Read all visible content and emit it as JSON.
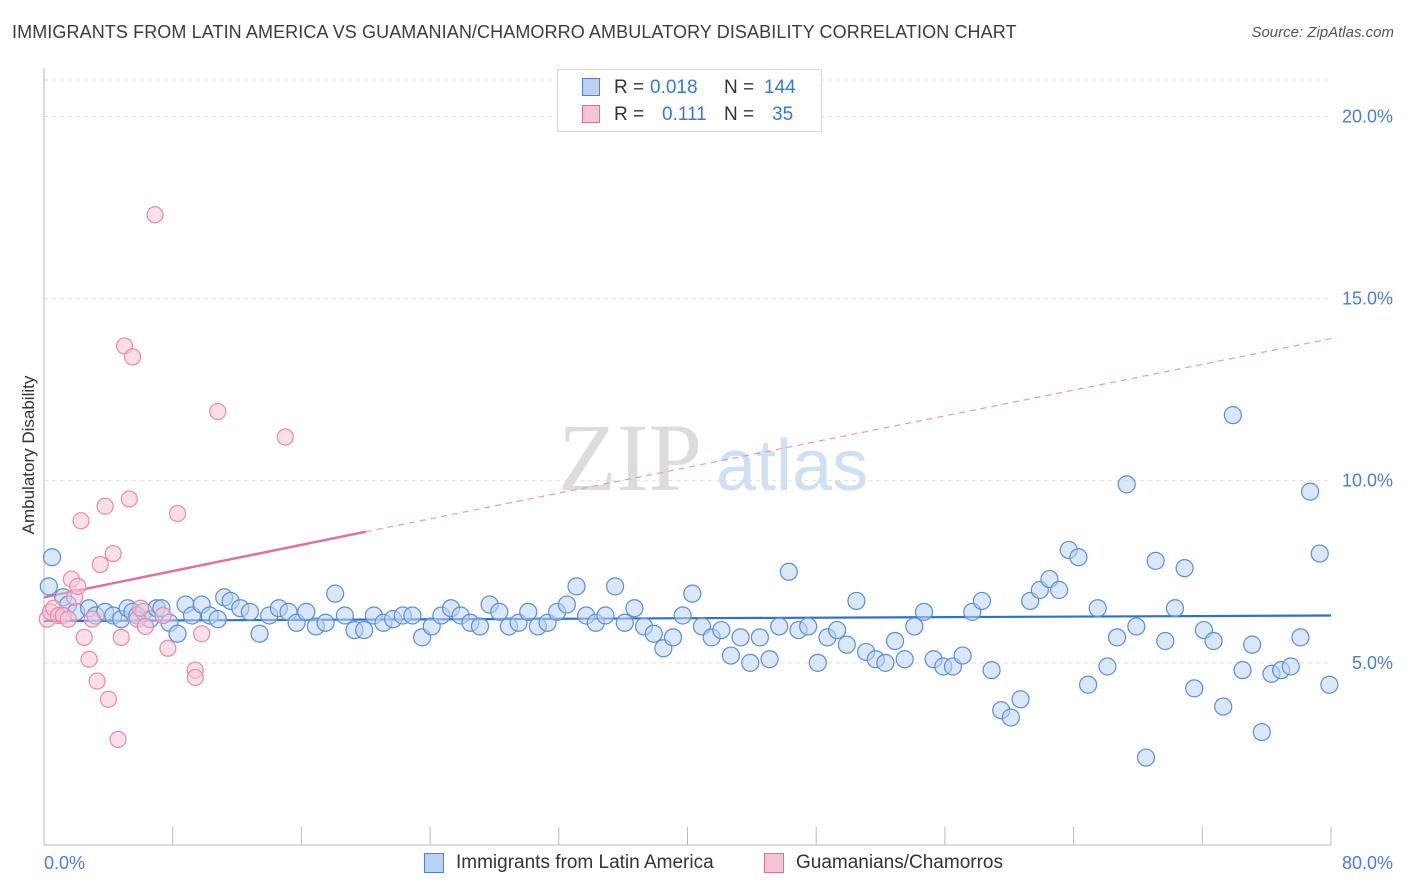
{
  "header": {
    "title": "IMMIGRANTS FROM LATIN AMERICA VS GUAMANIAN/CHAMORRO AMBULATORY DISABILITY CORRELATION CHART",
    "source": "Source: ZipAtlas.com"
  },
  "watermark": {
    "zip": "ZIP",
    "atlas": "atlas"
  },
  "legend": {
    "rows": [
      {
        "r_label": "R =",
        "r_value": "0.018",
        "n_label": "N =",
        "n_value": "144",
        "color": "#aac8f0"
      },
      {
        "r_label": "R =",
        "r_value": "0.111",
        "n_label": "N =",
        "n_value": "35",
        "color": "#f5bcd0"
      }
    ]
  },
  "bottom_legend": {
    "series1": "Immigrants from Latin America",
    "series2": "Guamanians/Chamorros"
  },
  "colors": {
    "blue": "#4a86d8",
    "blue_fill": "#b9d3f3",
    "pink": "#e0709a",
    "pink_fill": "#f7c4d5",
    "tick_text": "#4a7fd4",
    "grid": "#dddddd"
  },
  "chart_data": {
    "type": "scatter",
    "xlabel": "",
    "ylabel": "Ambulatory Disability",
    "xlim": [
      0,
      80
    ],
    "ylim": [
      0,
      21
    ],
    "x_tick_labels": [
      "0.0%",
      "80.0%"
    ],
    "y_ticks": [
      5,
      10,
      15,
      20
    ],
    "y_tick_labels": [
      "5.0%",
      "10.0%",
      "15.0%",
      "20.0%"
    ],
    "grid": true,
    "legend_position": "top-center",
    "series": [
      {
        "name": "Immigrants from Latin America",
        "color": "#4a86d8",
        "R": 0.018,
        "N": 144,
        "trend": {
          "x": [
            0,
            80
          ],
          "y": [
            6.15,
            6.3
          ]
        },
        "points": [
          [
            0.3,
            7.1
          ],
          [
            0.5,
            7.9
          ],
          [
            1.2,
            6.8
          ],
          [
            1.5,
            6.6
          ],
          [
            2.0,
            6.4
          ],
          [
            2.8,
            6.5
          ],
          [
            3.2,
            6.3
          ],
          [
            3.8,
            6.4
          ],
          [
            4.3,
            6.3
          ],
          [
            4.8,
            6.2
          ],
          [
            5.2,
            6.5
          ],
          [
            5.5,
            6.4
          ],
          [
            5.8,
            6.3
          ],
          [
            6.2,
            6.4
          ],
          [
            6.6,
            6.2
          ],
          [
            7.0,
            6.5
          ],
          [
            7.3,
            6.5
          ],
          [
            7.8,
            6.1
          ],
          [
            8.3,
            5.8
          ],
          [
            8.8,
            6.6
          ],
          [
            9.2,
            6.3
          ],
          [
            9.8,
            6.6
          ],
          [
            10.3,
            6.3
          ],
          [
            10.8,
            6.2
          ],
          [
            11.2,
            6.8
          ],
          [
            11.6,
            6.7
          ],
          [
            12.2,
            6.5
          ],
          [
            12.8,
            6.4
          ],
          [
            13.4,
            5.8
          ],
          [
            14.0,
            6.3
          ],
          [
            14.6,
            6.5
          ],
          [
            15.2,
            6.4
          ],
          [
            15.7,
            6.1
          ],
          [
            16.3,
            6.4
          ],
          [
            16.9,
            6.0
          ],
          [
            17.5,
            6.1
          ],
          [
            18.1,
            6.9
          ],
          [
            18.7,
            6.3
          ],
          [
            19.3,
            5.9
          ],
          [
            19.9,
            5.9
          ],
          [
            20.5,
            6.3
          ],
          [
            21.1,
            6.1
          ],
          [
            21.7,
            6.2
          ],
          [
            22.3,
            6.3
          ],
          [
            22.9,
            6.3
          ],
          [
            23.5,
            5.7
          ],
          [
            24.1,
            6.0
          ],
          [
            24.7,
            6.3
          ],
          [
            25.3,
            6.5
          ],
          [
            25.9,
            6.3
          ],
          [
            26.5,
            6.1
          ],
          [
            27.1,
            6.0
          ],
          [
            27.7,
            6.6
          ],
          [
            28.3,
            6.4
          ],
          [
            28.9,
            6.0
          ],
          [
            29.5,
            6.1
          ],
          [
            30.1,
            6.4
          ],
          [
            30.7,
            6.0
          ],
          [
            31.3,
            6.1
          ],
          [
            31.9,
            6.4
          ],
          [
            32.5,
            6.6
          ],
          [
            33.1,
            7.1
          ],
          [
            33.7,
            6.3
          ],
          [
            34.3,
            6.1
          ],
          [
            34.9,
            6.3
          ],
          [
            35.5,
            7.1
          ],
          [
            36.1,
            6.1
          ],
          [
            36.7,
            6.5
          ],
          [
            37.3,
            6.0
          ],
          [
            37.9,
            5.8
          ],
          [
            38.5,
            5.4
          ],
          [
            39.1,
            5.7
          ],
          [
            39.7,
            6.3
          ],
          [
            40.3,
            6.9
          ],
          [
            40.9,
            6.0
          ],
          [
            41.5,
            5.7
          ],
          [
            42.1,
            5.9
          ],
          [
            42.7,
            5.2
          ],
          [
            43.3,
            5.7
          ],
          [
            43.9,
            5.0
          ],
          [
            44.5,
            5.7
          ],
          [
            45.1,
            5.1
          ],
          [
            45.7,
            6.0
          ],
          [
            46.3,
            7.5
          ],
          [
            46.9,
            5.9
          ],
          [
            47.5,
            6.0
          ],
          [
            48.1,
            5.0
          ],
          [
            48.7,
            5.7
          ],
          [
            49.3,
            5.9
          ],
          [
            49.9,
            5.5
          ],
          [
            50.5,
            6.7
          ],
          [
            51.1,
            5.3
          ],
          [
            51.7,
            5.1
          ],
          [
            52.3,
            5.0
          ],
          [
            52.9,
            5.6
          ],
          [
            53.5,
            5.1
          ],
          [
            54.1,
            6.0
          ],
          [
            54.7,
            6.4
          ],
          [
            55.3,
            5.1
          ],
          [
            55.9,
            4.9
          ],
          [
            56.5,
            4.9
          ],
          [
            57.1,
            5.2
          ],
          [
            57.7,
            6.4
          ],
          [
            58.3,
            6.7
          ],
          [
            58.9,
            4.8
          ],
          [
            59.5,
            3.7
          ],
          [
            60.1,
            3.5
          ],
          [
            60.7,
            4.0
          ],
          [
            61.3,
            6.7
          ],
          [
            61.9,
            7.0
          ],
          [
            62.5,
            7.3
          ],
          [
            63.1,
            7.0
          ],
          [
            63.7,
            8.1
          ],
          [
            64.3,
            7.9
          ],
          [
            64.9,
            4.4
          ],
          [
            65.5,
            6.5
          ],
          [
            66.1,
            4.9
          ],
          [
            66.7,
            5.7
          ],
          [
            67.3,
            9.9
          ],
          [
            67.9,
            6.0
          ],
          [
            68.5,
            2.4
          ],
          [
            69.1,
            7.8
          ],
          [
            69.7,
            5.6
          ],
          [
            70.3,
            6.5
          ],
          [
            70.9,
            7.6
          ],
          [
            71.5,
            4.3
          ],
          [
            72.1,
            5.9
          ],
          [
            72.7,
            5.6
          ],
          [
            73.3,
            3.8
          ],
          [
            73.9,
            11.8
          ],
          [
            74.5,
            4.8
          ],
          [
            75.1,
            5.5
          ],
          [
            75.7,
            3.1
          ],
          [
            76.3,
            4.7
          ],
          [
            76.9,
            4.8
          ],
          [
            77.5,
            4.9
          ],
          [
            78.1,
            5.7
          ],
          [
            78.7,
            9.7
          ],
          [
            79.3,
            8.0
          ],
          [
            79.9,
            4.4
          ]
        ]
      },
      {
        "name": "Guamanians/Chamorros",
        "color": "#e0709a",
        "R": 0.111,
        "N": 35,
        "trend": {
          "x": [
            0,
            20
          ],
          "y": [
            6.8,
            8.6
          ]
        },
        "trend_extension": {
          "x": [
            20,
            80
          ],
          "y": [
            8.6,
            13.9
          ]
        },
        "points": [
          [
            0.2,
            6.2
          ],
          [
            0.4,
            6.4
          ],
          [
            0.6,
            6.5
          ],
          [
            0.9,
            6.3
          ],
          [
            1.2,
            6.3
          ],
          [
            1.5,
            6.2
          ],
          [
            1.7,
            7.3
          ],
          [
            1.9,
            6.8
          ],
          [
            2.1,
            7.1
          ],
          [
            2.3,
            8.9
          ],
          [
            2.5,
            5.7
          ],
          [
            2.8,
            5.1
          ],
          [
            3.0,
            6.2
          ],
          [
            3.3,
            4.5
          ],
          [
            3.5,
            7.7
          ],
          [
            3.8,
            9.3
          ],
          [
            4.0,
            4.0
          ],
          [
            4.3,
            8.0
          ],
          [
            4.6,
            2.9
          ],
          [
            4.8,
            5.7
          ],
          [
            5.0,
            13.7
          ],
          [
            5.3,
            9.5
          ],
          [
            5.5,
            13.4
          ],
          [
            5.8,
            6.2
          ],
          [
            6.0,
            6.5
          ],
          [
            6.3,
            6.0
          ],
          [
            6.9,
            17.3
          ],
          [
            7.4,
            6.3
          ],
          [
            7.7,
            5.4
          ],
          [
            8.3,
            9.1
          ],
          [
            9.4,
            4.8
          ],
          [
            9.4,
            4.6
          ],
          [
            9.8,
            5.8
          ],
          [
            10.8,
            11.9
          ],
          [
            15.0,
            11.2
          ]
        ]
      }
    ]
  }
}
